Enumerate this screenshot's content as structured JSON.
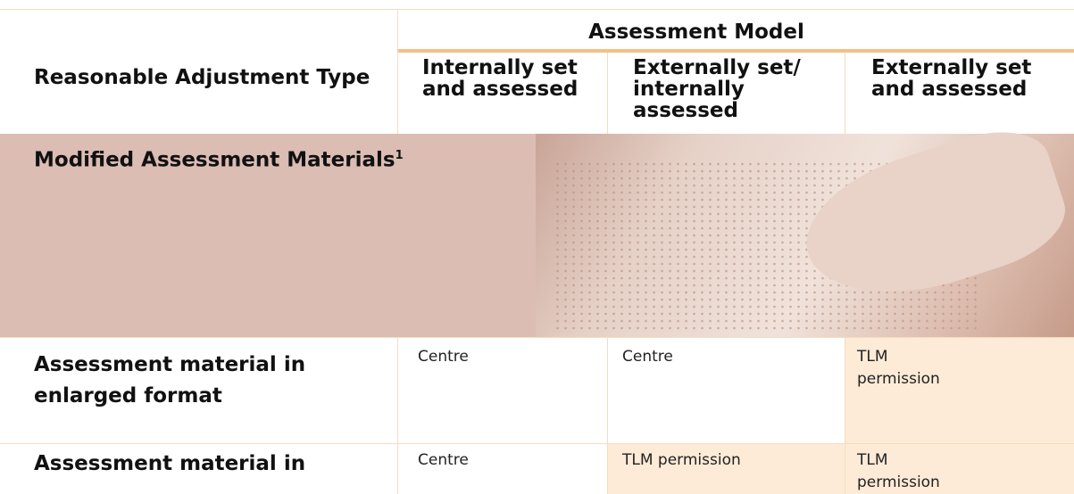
{
  "table": {
    "header": {
      "group": "Assessment Model",
      "first": "Reasonable Adjustment Type",
      "columns": [
        "Internally set and assessed",
        "Externally set/ internally assessed",
        "Externally set and assessed"
      ]
    },
    "section": {
      "title": "Modified Assessment Materials",
      "footnote": "1"
    },
    "rows": [
      [
        "Assessment material in enlarged format",
        "Centre",
        "Centre",
        "TLM permission"
      ],
      [
        "Assessment material in",
        "Centre",
        "TLM permission",
        "TLM permission"
      ]
    ]
  }
}
